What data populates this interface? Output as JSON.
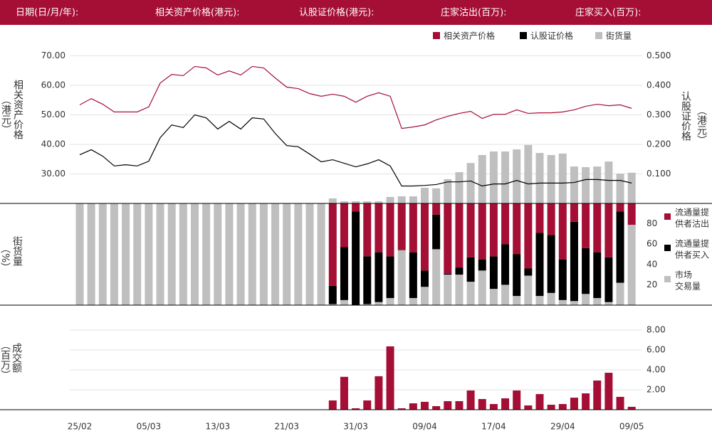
{
  "header": {
    "labels": [
      "日期(日/月/年):",
      "相关资产价格(港元):",
      "认股证价格(港元):",
      "庄家沽出(百万):",
      "庄家买入(百万):"
    ]
  },
  "chart_data": [
    {
      "type": "line",
      "y_label": [
        "相关资产价格",
        "（港元）"
      ],
      "y2_label": [
        "认股证价格",
        "（港元）"
      ],
      "ylim": [
        20,
        75
      ],
      "yticks": [
        {
          "value": 30,
          "label": "30.00"
        },
        {
          "value": 40,
          "label": "40.00"
        },
        {
          "value": 50,
          "label": "50.00"
        },
        {
          "value": 60,
          "label": "60.00"
        },
        {
          "value": 70,
          "label": "70.00"
        }
      ],
      "y2lim": [
        0,
        0.55
      ],
      "y2ticks": [
        {
          "value": 0.1,
          "label": "0.100"
        },
        {
          "value": 0.2,
          "label": "0.200"
        },
        {
          "value": 0.3,
          "label": "0.300"
        },
        {
          "value": 0.4,
          "label": "0.400"
        },
        {
          "value": 0.5,
          "label": "0.500"
        }
      ],
      "grid": true,
      "series": [
        {
          "name": "相关资产价格",
          "color": "#a50e35",
          "values": [
            53.4,
            55.5,
            53.6,
            51.0,
            51.0,
            51.0,
            52.7,
            60.8,
            63.7,
            63.3,
            66.4,
            65.9,
            63.5,
            64.9,
            63.5,
            66.4,
            65.9,
            62.5,
            59.4,
            58.9,
            57.2,
            56.3,
            57.0,
            56.3,
            54.3,
            56.3,
            57.5,
            56.3,
            45.4,
            45.9,
            46.6,
            48.3,
            49.5,
            50.5,
            51.2,
            48.8,
            50.2,
            50.2,
            51.7,
            50.5,
            50.7,
            50.7,
            51.0,
            51.7,
            52.9,
            53.6,
            53.1,
            53.4,
            52.2
          ]
        },
        {
          "name": "认股证价格",
          "color": "#000000",
          "axis": "y2",
          "values": [
            0.165,
            0.182,
            0.16,
            0.127,
            0.131,
            0.127,
            0.143,
            0.223,
            0.266,
            0.257,
            0.3,
            0.29,
            0.252,
            0.278,
            0.252,
            0.29,
            0.286,
            0.237,
            0.196,
            0.192,
            0.167,
            0.141,
            0.148,
            0.136,
            0.124,
            0.134,
            0.148,
            0.127,
            0.059,
            0.059,
            0.061,
            0.064,
            0.073,
            0.073,
            0.076,
            0.059,
            0.066,
            0.066,
            0.078,
            0.066,
            0.069,
            0.069,
            0.069,
            0.071,
            0.081,
            0.081,
            0.078,
            0.078,
            0.069
          ]
        },
        {
          "name": "街货量",
          "color": "#bfbfbf",
          "type": "bar",
          "axis": "y2",
          "values": [
            null,
            null,
            null,
            null,
            null,
            null,
            null,
            null,
            null,
            null,
            null,
            null,
            null,
            null,
            null,
            null,
            null,
            null,
            null,
            null,
            null,
            null,
            0.017,
            0.007,
            0.007,
            0.007,
            0.007,
            0.022,
            0.024,
            0.024,
            0.053,
            0.051,
            0.082,
            0.106,
            0.137,
            0.164,
            0.176,
            0.176,
            0.183,
            0.198,
            0.171,
            0.164,
            0.169,
            0.125,
            0.123,
            0.125,
            0.142,
            0.101,
            0.104
          ]
        }
      ]
    },
    {
      "type": "stacked_bar",
      "y_label": [
        "街货量",
        "（%）"
      ],
      "ylim": [
        0,
        100
      ],
      "yticks": [
        20,
        40,
        60,
        80
      ],
      "series": [
        {
          "name": [
            "流通量提",
            "供者沽出"
          ],
          "color": "#a50e35",
          "values": [
            null,
            null,
            null,
            null,
            null,
            null,
            null,
            null,
            null,
            null,
            null,
            null,
            null,
            null,
            null,
            null,
            null,
            null,
            null,
            null,
            null,
            null,
            81,
            43,
            8,
            52,
            48,
            52,
            46,
            48,
            66,
            11,
            69,
            63,
            53,
            55,
            52,
            40,
            50,
            64,
            29,
            31,
            55,
            18,
            44,
            48,
            53,
            8,
            21
          ]
        },
        {
          "name": [
            "流通量提",
            "供者买入"
          ],
          "color": "#000000",
          "values": [
            null,
            null,
            null,
            null,
            null,
            null,
            null,
            null,
            null,
            null,
            null,
            null,
            null,
            null,
            null,
            null,
            null,
            null,
            null,
            null,
            null,
            null,
            18,
            52,
            92,
            47,
            49,
            41,
            0,
            45,
            16,
            34,
            1,
            7,
            24,
            11,
            32,
            40,
            41,
            7,
            62,
            57,
            40,
            78,
            45,
            45,
            44,
            70,
            0
          ]
        },
        {
          "name": [
            "市场",
            "交易量"
          ],
          "color": "#bfbfbf",
          "values": [
            100,
            100,
            100,
            100,
            100,
            100,
            100,
            100,
            100,
            100,
            100,
            100,
            100,
            100,
            100,
            100,
            100,
            100,
            100,
            100,
            100,
            100,
            1,
            5,
            0,
            1,
            3,
            7,
            54,
            7,
            18,
            55,
            30,
            30,
            23,
            34,
            16,
            20,
            9,
            29,
            9,
            12,
            5,
            4,
            11,
            7,
            3,
            22,
            79
          ]
        }
      ]
    },
    {
      "type": "bar",
      "y_label": [
        "成交额",
        "（百万）"
      ],
      "ylim": [
        0,
        10.5
      ],
      "yticks": [
        {
          "value": 2,
          "label": "2.00"
        },
        {
          "value": 4,
          "label": "4.00"
        },
        {
          "value": 6,
          "label": "6.00"
        },
        {
          "value": 8,
          "label": "8.00"
        }
      ],
      "grid": true,
      "color": "#a50e35",
      "categories": [
        "25/02",
        null,
        null,
        null,
        null,
        null,
        "05/03",
        null,
        null,
        null,
        null,
        null,
        "13/03",
        null,
        null,
        null,
        null,
        null,
        "21/03",
        null,
        null,
        null,
        null,
        null,
        "31/03",
        null,
        null,
        null,
        null,
        null,
        "09/04",
        null,
        null,
        null,
        null,
        null,
        "17/04",
        null,
        null,
        null,
        null,
        null,
        "29/04",
        null,
        null,
        null,
        null,
        null,
        "09/05"
      ],
      "values": [
        null,
        null,
        null,
        null,
        null,
        null,
        null,
        null,
        null,
        null,
        null,
        null,
        null,
        null,
        null,
        null,
        null,
        null,
        null,
        null,
        null,
        null,
        0.93,
        3.3,
        0.14,
        0.93,
        3.36,
        6.36,
        0.14,
        0.64,
        0.79,
        0.36,
        0.86,
        0.86,
        1.93,
        1.07,
        0.57,
        1.14,
        1.93,
        0.43,
        1.57,
        0.5,
        0.57,
        1.21,
        1.64,
        2.93,
        3.71,
        1.29,
        0.29
      ]
    }
  ]
}
